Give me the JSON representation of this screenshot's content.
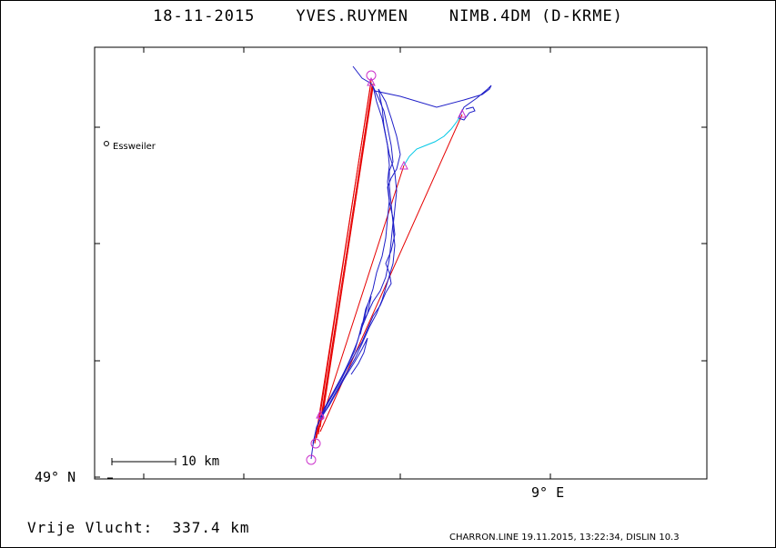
{
  "title": {
    "date": "18-11-2015",
    "pilot": "YVES.RUYMEN",
    "glider": "NIMB.4DM (D-KRME)"
  },
  "axes": {
    "lat_label": "49° N",
    "lon_label": "9° E"
  },
  "scale_bar": {
    "label": "10 km"
  },
  "town": {
    "name": "Essweiler"
  },
  "distance_text": "Vrije Vlucht:  337.4 km",
  "footer": "CHARRON.LINE 19.11.2015, 13:22:34, DISLIN 10.3",
  "colors": {
    "track": "#1f1fc8",
    "track_alt": "#00c8e6",
    "task_line": "#e60000",
    "turnpoint": "#cc33cc",
    "frame": "#000000"
  }
}
